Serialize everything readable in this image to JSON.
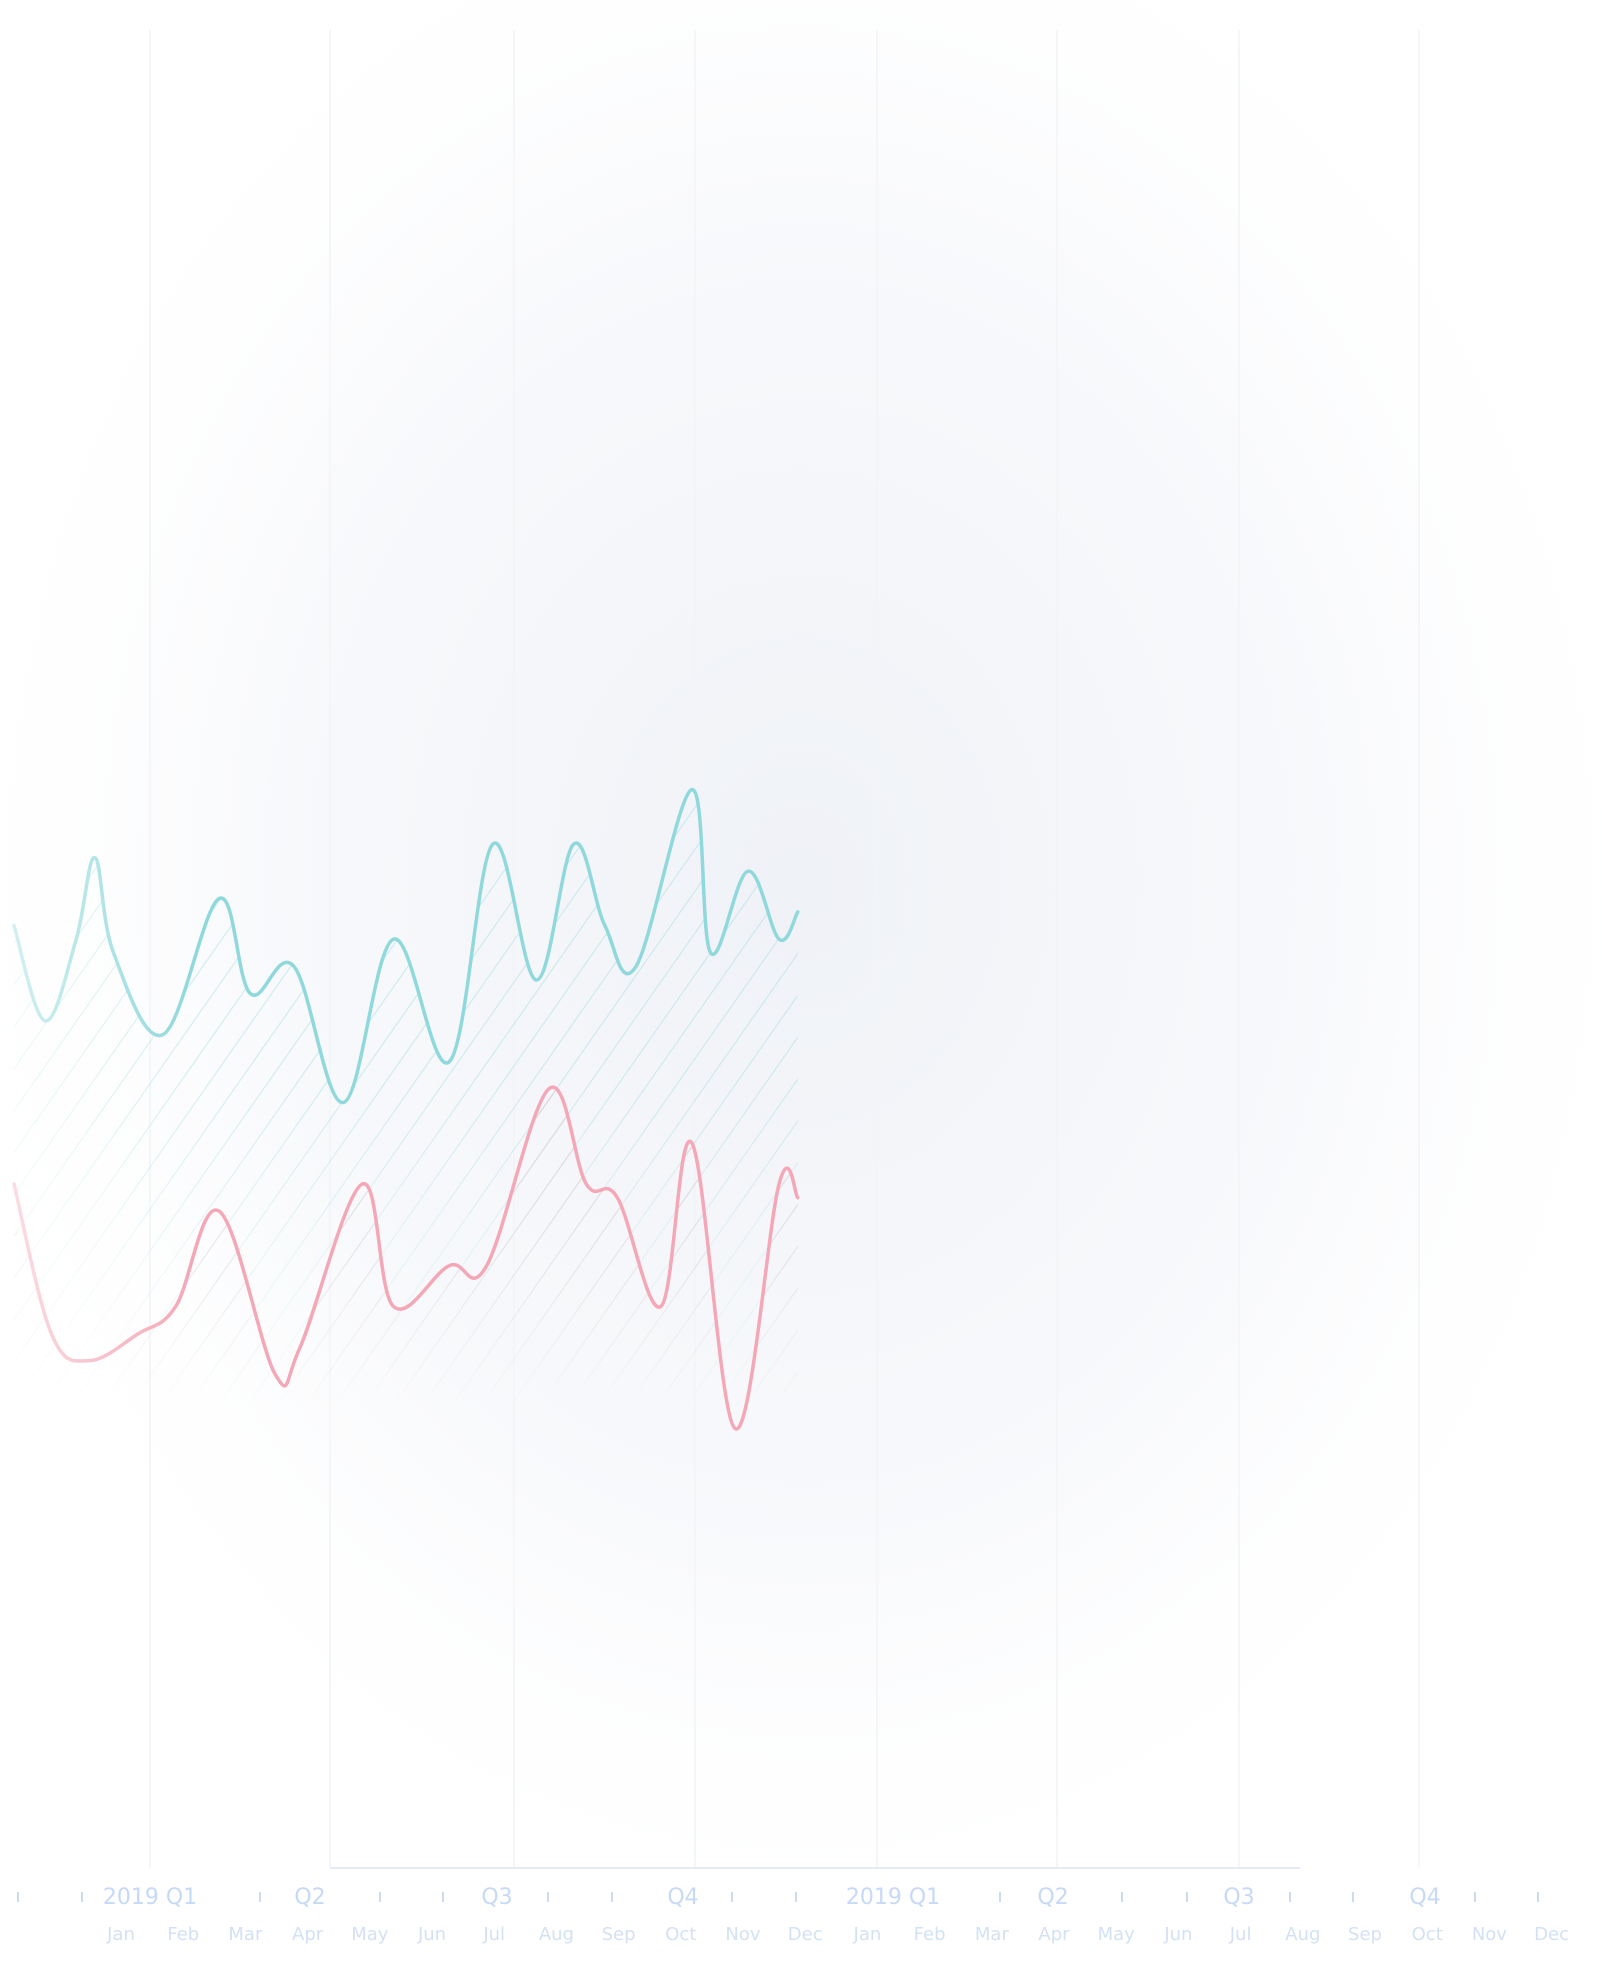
{
  "chart_data": {
    "type": "area",
    "title": "",
    "xlabel": "",
    "ylabel": "",
    "grid": true,
    "legend": "none",
    "quarter_labels": [
      "2019 Q1",
      "Q2",
      "Q3",
      "Q4",
      "2019 Q1",
      "Q2",
      "Q3",
      "Q4"
    ],
    "month_labels": [
      "Jan",
      "Feb",
      "Mar",
      "Apr",
      "May",
      "Jun",
      "Jul",
      "Aug",
      "Sep",
      "Oct",
      "Nov",
      "Dec",
      "Jan",
      "Feb",
      "Mar",
      "Apr",
      "May",
      "Jun",
      "Jul",
      "Aug",
      "Sep",
      "Oct",
      "Nov",
      "Dec"
    ],
    "ylim": [
      0,
      100
    ],
    "series": [
      {
        "color": "#8fd8dc",
        "points": [
          [
            0.0,
            54
          ],
          [
            0.5,
            47
          ],
          [
            1.0,
            53
          ],
          [
            1.3,
            59
          ],
          [
            1.6,
            52
          ],
          [
            2.4,
            46
          ],
          [
            3.3,
            56
          ],
          [
            3.8,
            49
          ],
          [
            4.5,
            51
          ],
          [
            5.3,
            41
          ],
          [
            6.1,
            53
          ],
          [
            7.0,
            44
          ],
          [
            7.7,
            60
          ],
          [
            8.4,
            50
          ],
          [
            9.0,
            60
          ],
          [
            9.5,
            54
          ],
          [
            10.0,
            51
          ],
          [
            10.9,
            64
          ],
          [
            11.2,
            52
          ],
          [
            11.8,
            58
          ],
          [
            12.3,
            53
          ],
          [
            12.6,
            55
          ]
        ]
      },
      {
        "color": "#f4a7b6",
        "points": [
          [
            0.0,
            35
          ],
          [
            0.6,
            24
          ],
          [
            1.2,
            22
          ],
          [
            2.0,
            24
          ],
          [
            2.6,
            26
          ],
          [
            3.3,
            33
          ],
          [
            4.2,
            21
          ],
          [
            4.6,
            23
          ],
          [
            5.6,
            35
          ],
          [
            6.1,
            26
          ],
          [
            7.0,
            29
          ],
          [
            7.6,
            29
          ],
          [
            8.6,
            42
          ],
          [
            9.2,
            35
          ],
          [
            9.7,
            34
          ],
          [
            10.4,
            26
          ],
          [
            10.9,
            38
          ],
          [
            11.6,
            17
          ],
          [
            12.3,
            35
          ],
          [
            12.6,
            34
          ]
        ]
      }
    ]
  }
}
